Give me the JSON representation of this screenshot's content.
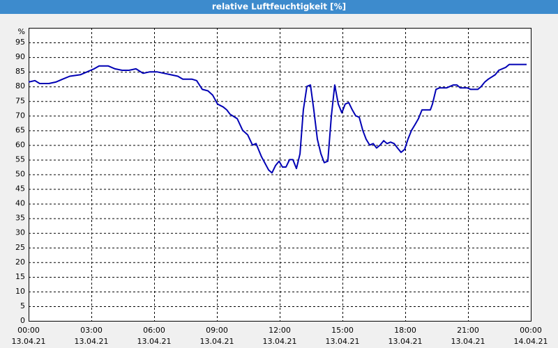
{
  "chart_data": {
    "type": "line",
    "title": "relative Luftfeuchtigkeit [%]",
    "y_label": "%",
    "x": [
      0,
      0.3,
      0.53,
      0.97,
      1.3,
      1.63,
      1.97,
      2.47,
      2.8,
      3.13,
      3.37,
      3.8,
      4.13,
      4.47,
      4.8,
      5.13,
      5.47,
      5.8,
      6.13,
      6.47,
      6.8,
      7.13,
      7.37,
      7.8,
      8.03,
      8.3,
      8.57,
      8.8,
      9.03,
      9.3,
      9.47,
      9.63,
      9.97,
      10.23,
      10.47,
      10.7,
      10.87,
      11.13,
      11.47,
      11.63,
      11.8,
      11.97,
      12.13,
      12.3,
      12.47,
      12.63,
      12.8,
      12.97,
      13.13,
      13.3,
      13.47,
      13.63,
      13.8,
      13.97,
      14.13,
      14.3,
      14.47,
      14.63,
      14.8,
      14.97,
      15.13,
      15.3,
      15.47,
      15.63,
      15.8,
      15.97,
      16.13,
      16.3,
      16.47,
      16.63,
      16.8,
      16.97,
      17.13,
      17.3,
      17.47,
      17.63,
      17.8,
      17.97,
      18.13,
      18.3,
      18.47,
      18.63,
      18.8,
      19.03,
      19.2,
      19.3,
      19.47,
      19.63,
      19.97,
      20.3,
      20.47,
      20.63,
      20.97,
      21.13,
      21.47,
      21.63,
      21.8,
      21.97,
      22.3,
      22.47,
      22.8,
      22.97,
      23.47,
      23.8
    ],
    "series": [
      {
        "name": "relative Luftfeuchtigkeit",
        "color": "#0000b4",
        "values": [
          81.5,
          82,
          81,
          81,
          81.5,
          82.5,
          83.5,
          84,
          85,
          86,
          87,
          87,
          86,
          85.5,
          85.5,
          86,
          84.5,
          85,
          85,
          84.5,
          84,
          83.5,
          82.5,
          82.5,
          82,
          79,
          78.5,
          77,
          74,
          73,
          72,
          70.5,
          69,
          65,
          63.5,
          60,
          60.5,
          56,
          51.5,
          50.5,
          53,
          54.5,
          52.5,
          52.5,
          55,
          55,
          52,
          57,
          72,
          80,
          80.5,
          72,
          62,
          57,
          54,
          54.5,
          70,
          80.5,
          74,
          71,
          74,
          74.5,
          72,
          70,
          69.5,
          65,
          62,
          60,
          60.5,
          59,
          60,
          61.5,
          60.5,
          61,
          60.5,
          59,
          57.5,
          58.5,
          62,
          65,
          67,
          69,
          72,
          72,
          72,
          74,
          79,
          79.5,
          79.5,
          80.5,
          80.5,
          79.5,
          79.5,
          79,
          79,
          80,
          81.5,
          82.5,
          84,
          85.5,
          86.5,
          87.5,
          87.5,
          87.5
        ]
      }
    ],
    "xlim": [
      0,
      24
    ],
    "xticks": [
      {
        "value": 0,
        "label": "00:00",
        "date": "13.04.21"
      },
      {
        "value": 3,
        "label": "03:00",
        "date": "13.04.21"
      },
      {
        "value": 6,
        "label": "06:00",
        "date": "13.04.21"
      },
      {
        "value": 9,
        "label": "09:00",
        "date": "13.04.21"
      },
      {
        "value": 12,
        "label": "12:00",
        "date": "13.04.21"
      },
      {
        "value": 15,
        "label": "15:00",
        "date": "13.04.21"
      },
      {
        "value": 18,
        "label": "18:00",
        "date": "13.04.21"
      },
      {
        "value": 21,
        "label": "21:00",
        "date": "13.04.21"
      },
      {
        "value": 24,
        "label": "00:00",
        "date": "14.04.21"
      }
    ],
    "ylim": [
      0,
      100
    ],
    "yticks": [
      0,
      5,
      10,
      15,
      20,
      25,
      30,
      35,
      40,
      45,
      50,
      55,
      60,
      65,
      70,
      75,
      80,
      85,
      90,
      95
    ],
    "grid": true
  }
}
